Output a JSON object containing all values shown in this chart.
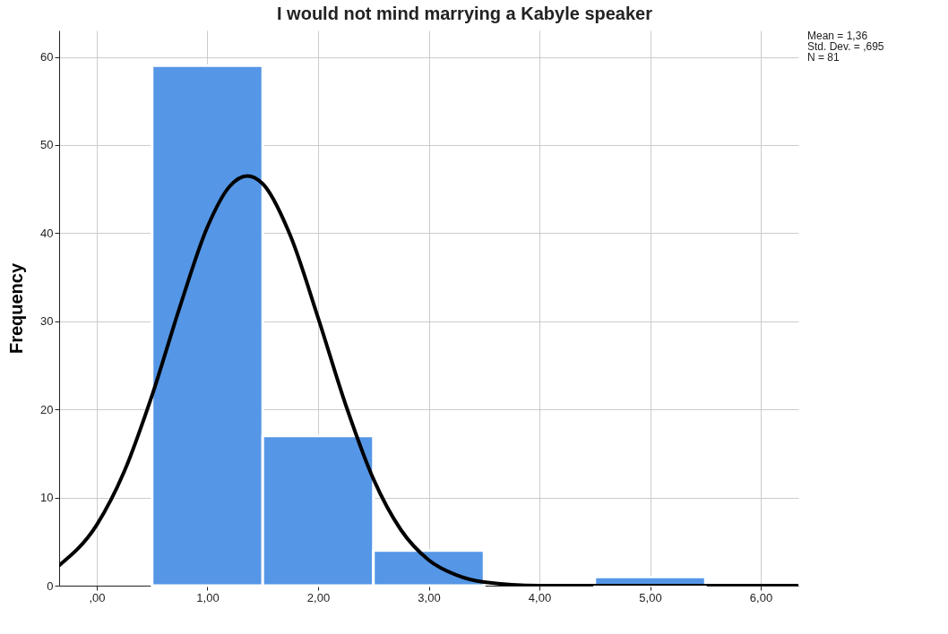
{
  "chart_data": {
    "type": "histogram",
    "title": "I would not mind marrying a Kabyle speaker",
    "ylabel": "Frequency",
    "bins": [
      0.5,
      1.5,
      2.5,
      3.5,
      4.5,
      5.5
    ],
    "values": [
      59,
      17,
      4,
      0,
      1
    ],
    "color": "#5596e6",
    "series": [
      {
        "type": "line",
        "color": "#000000",
        "x": [
          -0.34,
          0,
          0.25,
          0.5,
          0.75,
          1.0,
          1.2,
          1.36,
          1.5,
          1.75,
          2.0,
          2.25,
          2.5,
          2.75,
          3.0,
          3.25,
          3.5,
          4.0,
          4.5,
          5.0,
          6.0,
          6.34
        ],
        "values": [
          2.3,
          6.9,
          13.0,
          21.6,
          31.6,
          40.7,
          45.3,
          46.5,
          45.6,
          39.7,
          30.4,
          20.5,
          12.1,
          6.3,
          2.9,
          1.2,
          0.4,
          0.0,
          0.0,
          0.0,
          0.0,
          0.0
        ]
      }
    ],
    "xlim": [
      -0.34,
      6.34
    ],
    "xticks": [
      {
        "value": 0,
        "label": ",00"
      },
      {
        "value": 1,
        "label": "1,00"
      },
      {
        "value": 2,
        "label": "2,00"
      },
      {
        "value": 3,
        "label": "3,00"
      },
      {
        "value": 4,
        "label": "4,00"
      },
      {
        "value": 5,
        "label": "5,00"
      },
      {
        "value": 6,
        "label": "6,00"
      }
    ],
    "ylim": [
      0,
      63
    ],
    "yticks": [
      0,
      10,
      20,
      30,
      40,
      50,
      60
    ],
    "grid": true,
    "line_style": "solid",
    "annotations": [
      "Mean = 1,36",
      "Std. Dev. = ,695",
      "N = 81"
    ]
  }
}
